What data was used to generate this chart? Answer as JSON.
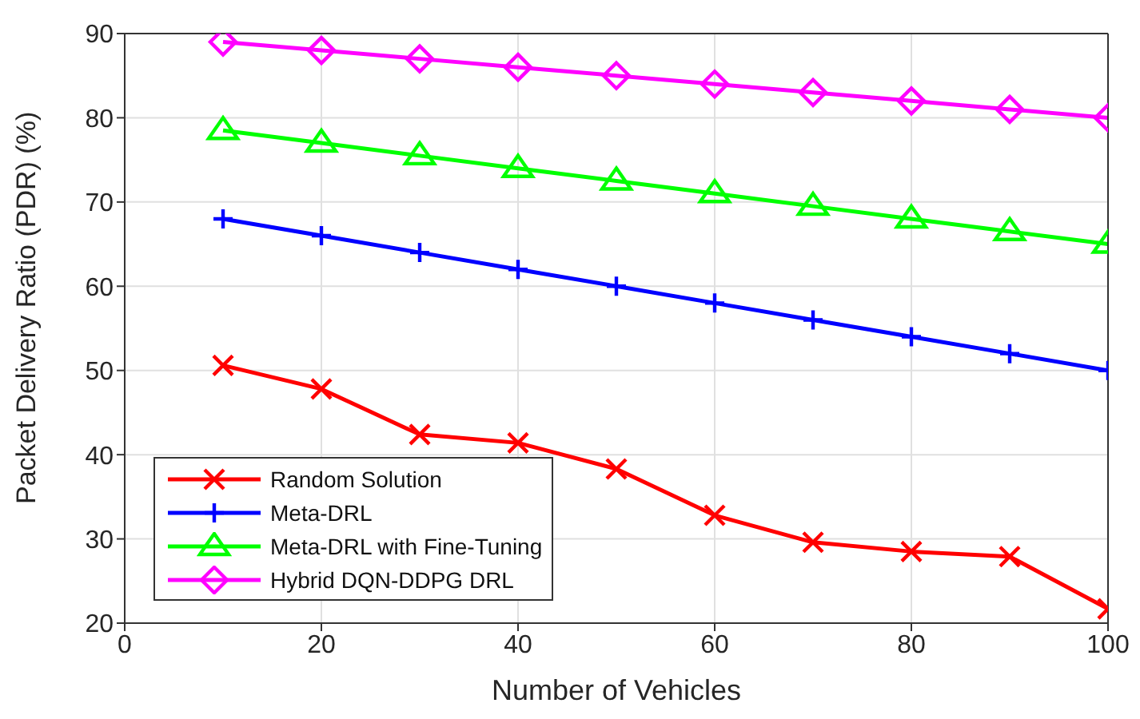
{
  "chart_data": {
    "type": "line",
    "xlabel": "Number of Vehicles",
    "ylabel": "Packet Delivery Ratio (PDR) (%)",
    "x": [
      10,
      20,
      30,
      40,
      50,
      60,
      70,
      80,
      90,
      100
    ],
    "xlim": [
      0,
      100
    ],
    "xticks": [
      0,
      20,
      40,
      60,
      80,
      100
    ],
    "ylim": [
      20,
      90
    ],
    "yticks": [
      20,
      30,
      40,
      50,
      60,
      70,
      80,
      90
    ],
    "grid": true,
    "legend": "bottom left",
    "line_style": "solid",
    "series": [
      {
        "name": "Random Solution",
        "color": "#ff0000",
        "marker": "cross",
        "values": [
          50.6,
          47.8,
          42.4,
          41.4,
          38.3,
          32.8,
          29.6,
          28.5,
          27.9,
          21.7
        ]
      },
      {
        "name": "Meta-DRL",
        "color": "#0000ff",
        "marker": "plus",
        "values": [
          68,
          66,
          64,
          62,
          60,
          58,
          56,
          54,
          52,
          50
        ]
      },
      {
        "name": "Meta-DRL with Fine-Tuning",
        "color": "#00ff00",
        "marker": "triangle",
        "values": [
          78.5,
          77,
          75.5,
          74,
          72.5,
          71,
          69.5,
          68,
          66.5,
          65
        ]
      },
      {
        "name": "Hybrid DQN-DDPG DRL",
        "color": "#ff00ff",
        "marker": "diamond",
        "values": [
          89,
          88,
          87,
          86,
          85,
          84,
          83,
          82,
          81,
          80
        ]
      }
    ]
  }
}
